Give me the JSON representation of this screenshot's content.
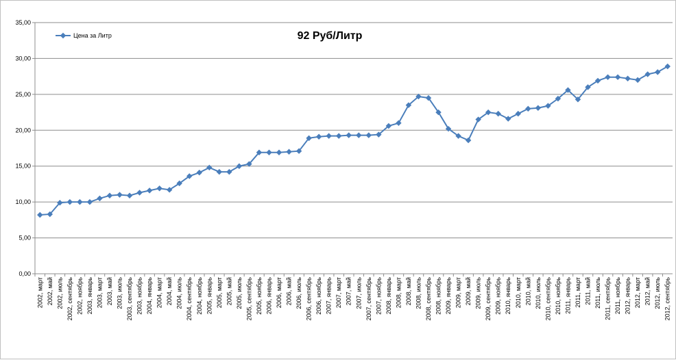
{
  "chart_data": {
    "type": "line",
    "title": "92 Руб/Литр",
    "xlabel": "",
    "ylabel": "",
    "ylim": [
      0,
      35
    ],
    "yticks": [
      "0,00",
      "5,00",
      "10,00",
      "15,00",
      "20,00",
      "25,00",
      "30,00",
      "35,00"
    ],
    "grid": true,
    "legend_position": "top-left",
    "series_color": "#4a7ebb",
    "categories": [
      "2002, март",
      "2002, май",
      "2002, июль",
      "2002, сентябрь",
      "2002, ноябрь",
      "2003, январь",
      "2003, март",
      "2003, май",
      "2003, июль",
      "2003, сентябрь",
      "2003, ноябрь",
      "2004, январь",
      "2004, март",
      "2004, май",
      "2004, июль",
      "2004, сентябрь",
      "2004, ноябрь",
      "2005, январь",
      "2005, март",
      "2005, май",
      "2005, июль",
      "2005, сентябрь",
      "2005, ноябрь",
      "2006, январь",
      "2006, март",
      "2006, май",
      "2006, июль",
      "2006, сентябрь",
      "2006, ноябрь",
      "2007, январь",
      "2007, март",
      "2007, май",
      "2007, июль",
      "2007, сентябрь",
      "2007, ноябрь",
      "2008, январь",
      "2008, март",
      "2008, май",
      "2008, июль",
      "2008, сентябрь",
      "2008, ноябрь",
      "2009, январь",
      "2009, март",
      "2009, май",
      "2009, июль",
      "2009, сентябрь",
      "2009, ноябрь",
      "2010, январь",
      "2010, март",
      "2010, май",
      "2010, июль",
      "2010, сентябрь",
      "2010, ноябрь",
      "2011, январь",
      "2011, март",
      "2011, май",
      "2011, июль",
      "2011, сентябрь",
      "2011, ноябрь",
      "2012, январь",
      "2012, март",
      "2012, май",
      "2012, июль",
      "2012, сентябрь"
    ],
    "series": [
      {
        "name": "Цена за Литр",
        "values": [
          8.2,
          8.3,
          9.9,
          10.0,
          10.0,
          10.0,
          10.5,
          10.9,
          11.0,
          10.9,
          11.3,
          11.6,
          11.9,
          11.7,
          12.6,
          13.6,
          14.1,
          14.8,
          14.2,
          14.2,
          15.0,
          15.3,
          16.9,
          16.9,
          16.9,
          17.0,
          17.1,
          18.9,
          19.1,
          19.2,
          19.2,
          19.3,
          19.3,
          19.3,
          19.4,
          20.6,
          21.0,
          23.5,
          24.7,
          24.5,
          22.5,
          20.2,
          19.2,
          18.6,
          21.5,
          22.5,
          22.3,
          21.6,
          22.3,
          23.0,
          23.1,
          23.4,
          24.4,
          25.6,
          24.3,
          26.0,
          26.9,
          27.4,
          27.4,
          27.2,
          27.0,
          27.8,
          28.1,
          28.9
        ]
      }
    ]
  }
}
